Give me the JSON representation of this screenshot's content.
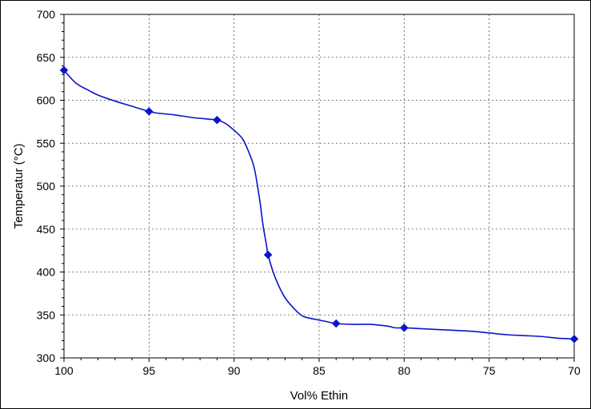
{
  "chart_data": {
    "type": "line",
    "title": "",
    "xlabel": "Vol% Ethin",
    "ylabel": "Temperatur (°C)",
    "xlim": [
      100,
      70
    ],
    "ylim": [
      300,
      700
    ],
    "x_reversed": true,
    "x_ticks": [
      100,
      95,
      90,
      85,
      80,
      75,
      70
    ],
    "y_ticks": [
      300,
      350,
      400,
      450,
      500,
      550,
      600,
      650,
      700
    ],
    "grid": true,
    "legend": "none",
    "series": [
      {
        "color": "#0a14c8",
        "marker": "diamond",
        "markers": [
          {
            "x": 100,
            "y": 635
          },
          {
            "x": 95,
            "y": 587
          },
          {
            "x": 91,
            "y": 577
          },
          {
            "x": 88,
            "y": 420
          },
          {
            "x": 84,
            "y": 340
          },
          {
            "x": 80,
            "y": 335
          },
          {
            "x": 70,
            "y": 322
          }
        ],
        "curve": [
          {
            "x": 100,
            "y": 635
          },
          {
            "x": 99.3,
            "y": 620
          },
          {
            "x": 98.5,
            "y": 611
          },
          {
            "x": 98,
            "y": 606
          },
          {
            "x": 97,
            "y": 599
          },
          {
            "x": 96,
            "y": 593
          },
          {
            "x": 95,
            "y": 587
          },
          {
            "x": 94.5,
            "y": 585
          },
          {
            "x": 93.5,
            "y": 583
          },
          {
            "x": 92.5,
            "y": 580
          },
          {
            "x": 91.5,
            "y": 578
          },
          {
            "x": 91,
            "y": 577
          },
          {
            "x": 90.5,
            "y": 573
          },
          {
            "x": 90,
            "y": 565
          },
          {
            "x": 89.5,
            "y": 555
          },
          {
            "x": 89.1,
            "y": 538
          },
          {
            "x": 88.8,
            "y": 520
          },
          {
            "x": 88.5,
            "y": 485
          },
          {
            "x": 88.3,
            "y": 455
          },
          {
            "x": 88.1,
            "y": 432
          },
          {
            "x": 88,
            "y": 420
          },
          {
            "x": 87.7,
            "y": 400
          },
          {
            "x": 87.4,
            "y": 385
          },
          {
            "x": 87,
            "y": 370
          },
          {
            "x": 86.5,
            "y": 358
          },
          {
            "x": 86,
            "y": 349
          },
          {
            "x": 85.5,
            "y": 346
          },
          {
            "x": 85,
            "y": 344
          },
          {
            "x": 84.5,
            "y": 342
          },
          {
            "x": 84,
            "y": 340
          },
          {
            "x": 83,
            "y": 339
          },
          {
            "x": 82,
            "y": 339
          },
          {
            "x": 81,
            "y": 337
          },
          {
            "x": 80.5,
            "y": 335
          },
          {
            "x": 80,
            "y": 335
          },
          {
            "x": 79,
            "y": 334
          },
          {
            "x": 78,
            "y": 333
          },
          {
            "x": 77,
            "y": 332
          },
          {
            "x": 76,
            "y": 331
          },
          {
            "x": 75,
            "y": 329
          },
          {
            "x": 74,
            "y": 327
          },
          {
            "x": 73,
            "y": 326
          },
          {
            "x": 72,
            "y": 325
          },
          {
            "x": 71,
            "y": 323
          },
          {
            "x": 70,
            "y": 322
          }
        ]
      }
    ]
  }
}
